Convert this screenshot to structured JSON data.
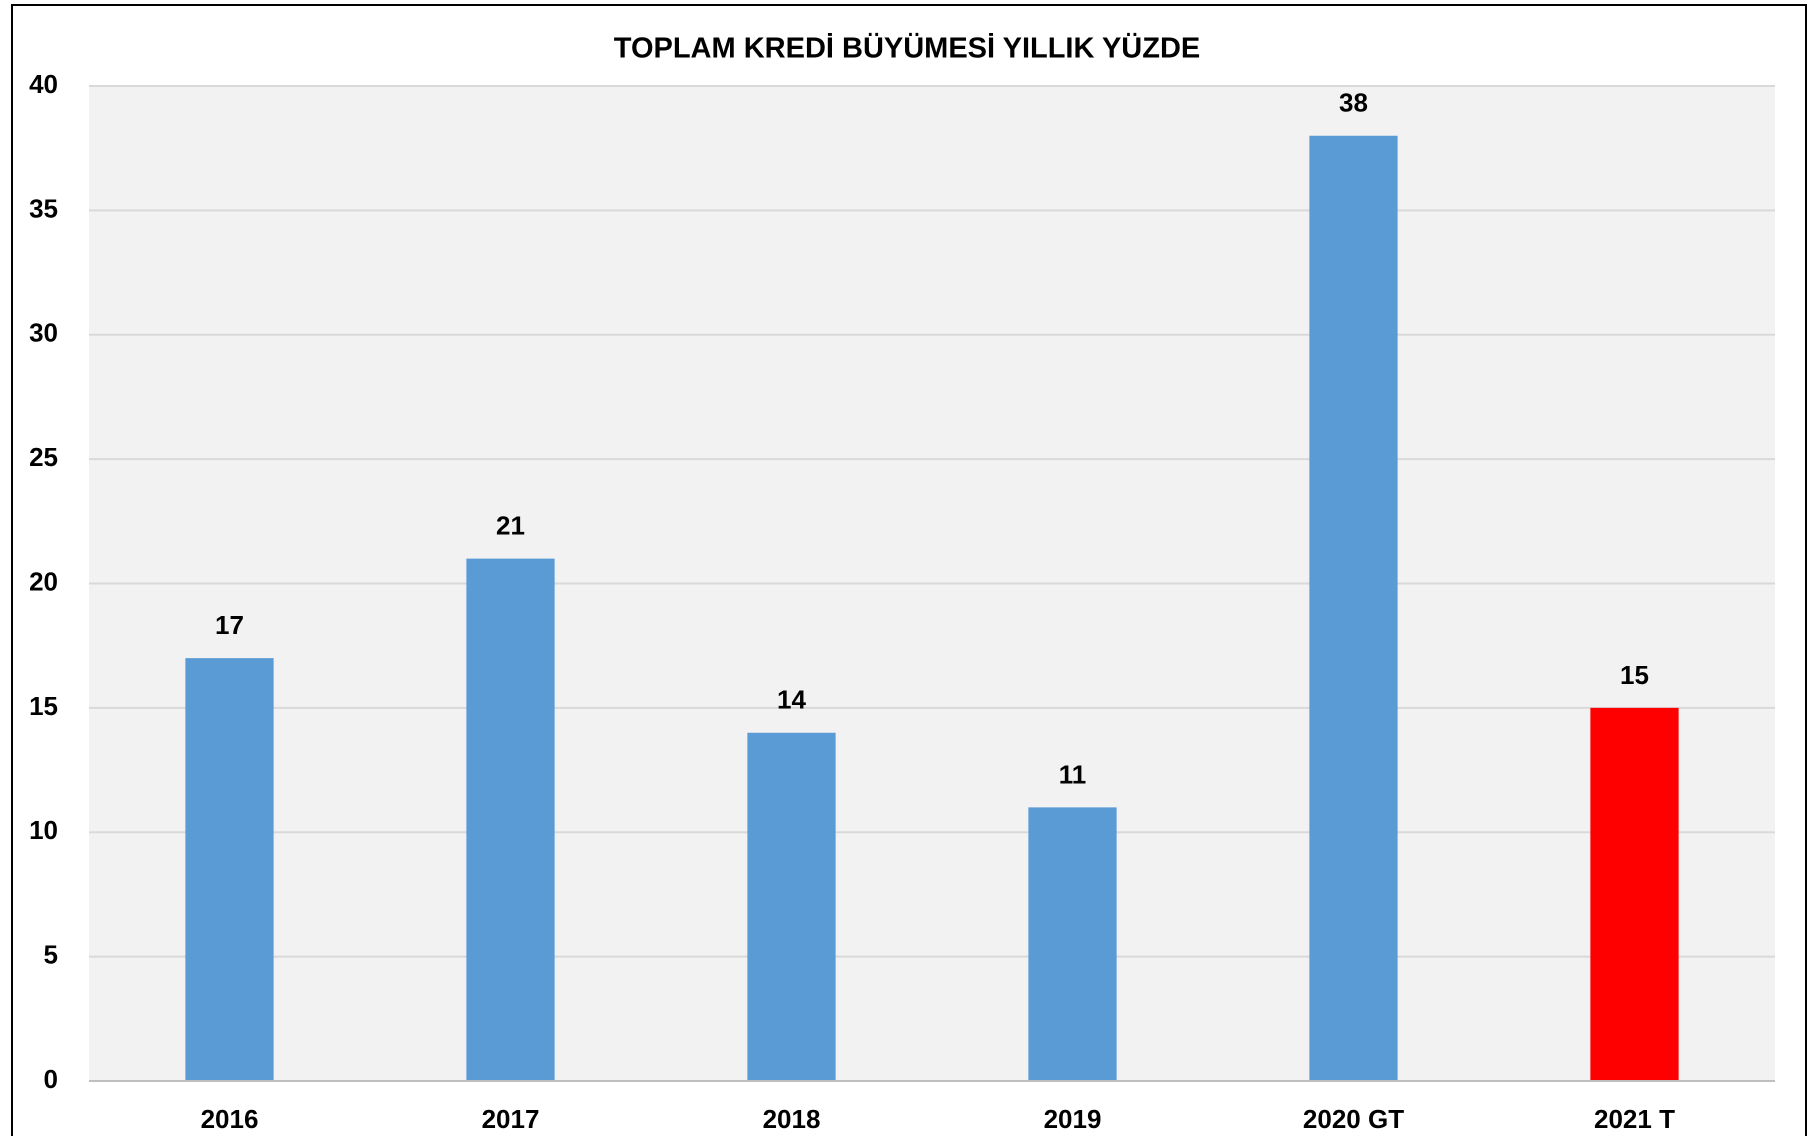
{
  "chart_data": {
    "type": "bar",
    "title": "TOPLAM KREDİ BÜYÜMESİ YILLIK YÜZDE",
    "categories": [
      "2016",
      "2017",
      "2018",
      "2019",
      "2020 GT",
      "2021 T"
    ],
    "values": [
      17,
      21,
      14,
      11,
      38,
      15
    ],
    "colors": [
      "#5b9bd5",
      "#5b9bd5",
      "#5b9bd5",
      "#5b9bd5",
      "#5b9bd5",
      "#ff0000"
    ],
    "ylim": [
      0,
      40
    ],
    "yticks": [
      0,
      5,
      10,
      15,
      20,
      25,
      30,
      35,
      40
    ],
    "grid": true,
    "data_labels": true
  }
}
